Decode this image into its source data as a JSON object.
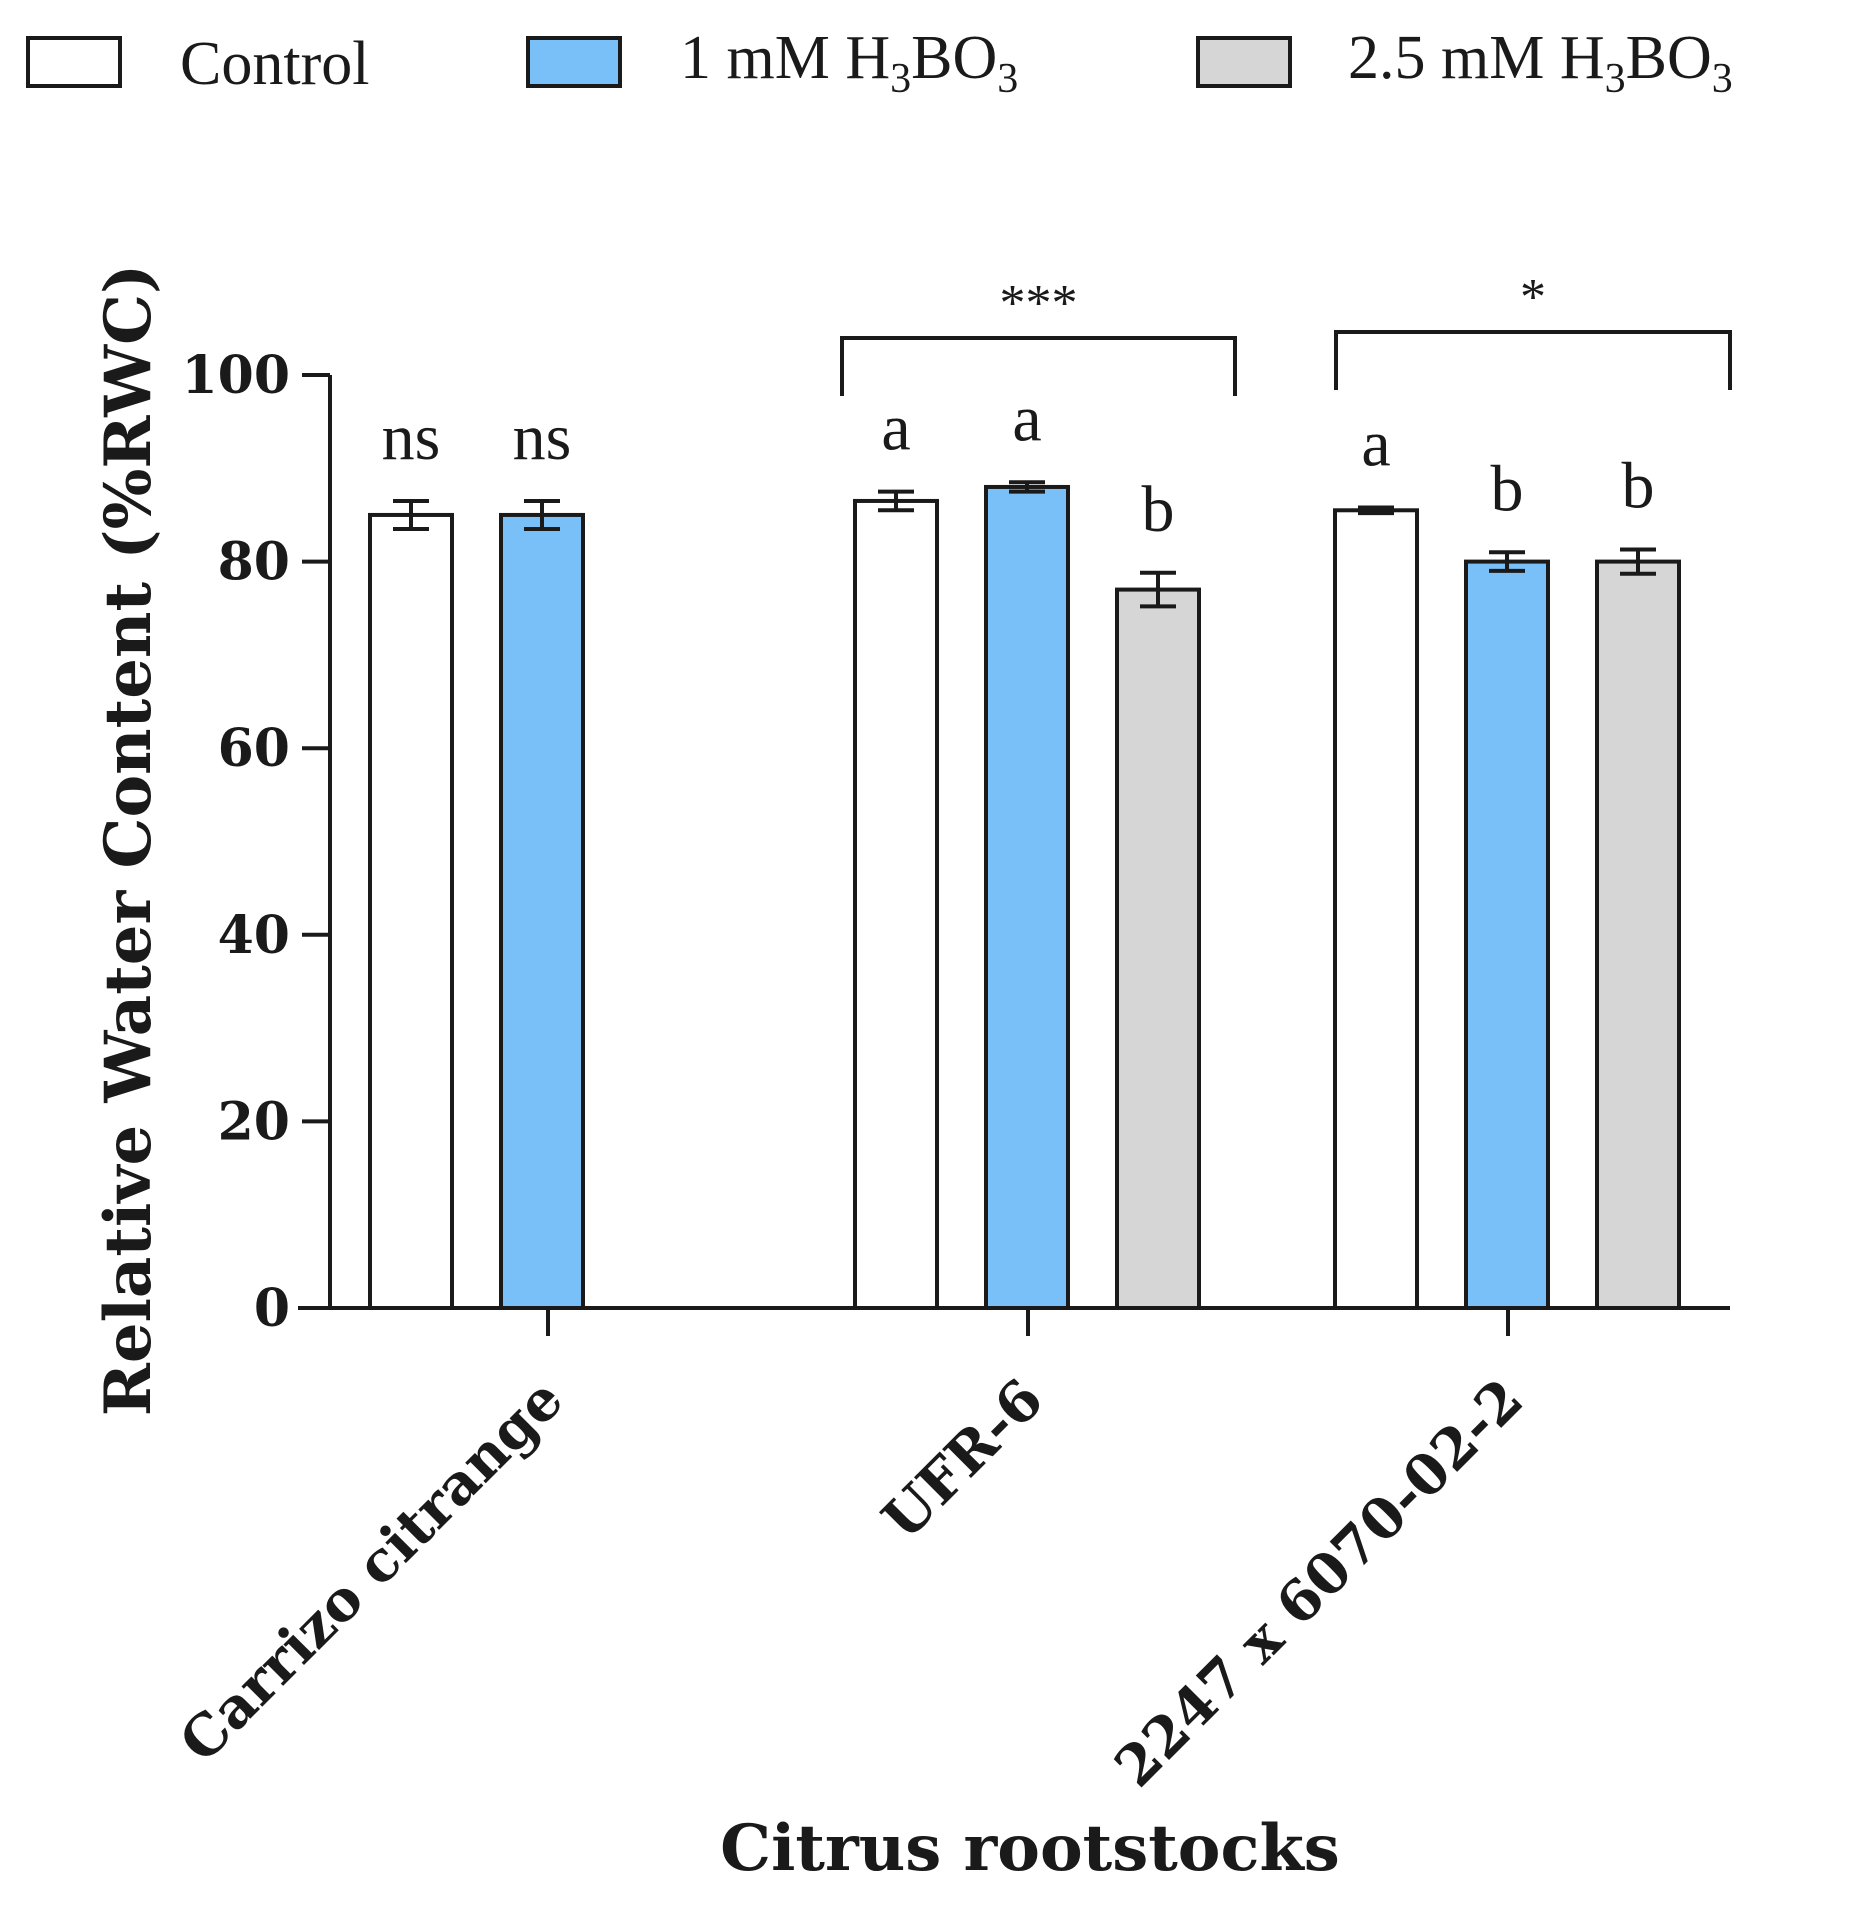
{
  "chart_data": {
    "type": "bar",
    "title": "",
    "xlabel": "Citrus rootstocks",
    "ylabel": "Relative Water Content (%RWC)",
    "ylim": [
      0,
      100
    ],
    "yticks": [
      0,
      20,
      40,
      60,
      80,
      100
    ],
    "grid": false,
    "legend_position": "top",
    "categories": [
      "Carrizo citrange",
      "UFR-6",
      "2247 x 6070-02-2"
    ],
    "series": [
      {
        "name": "Control",
        "color": "#ffffff",
        "legend_base": "Control",
        "legend_sub": "",
        "legend_tail": "",
        "values": [
          85.0,
          86.5,
          85.5
        ],
        "errors": [
          1.5,
          1.0,
          0.3
        ],
        "letters": [
          "ns",
          "a",
          "a"
        ]
      },
      {
        "name": "1 mM H3BO3",
        "color": "#79bff8",
        "legend_base": "1 mM H",
        "legend_sub": "3",
        "legend_tail": "BO",
        "legend_sub2": "3",
        "values": [
          85.0,
          88.0,
          80.0
        ],
        "errors": [
          1.5,
          0.5,
          1.0
        ],
        "letters": [
          "ns",
          "a",
          "b"
        ]
      },
      {
        "name": "2.5 mM H3BO3",
        "color": "#d6d6d6",
        "legend_base": "2.5 mM H",
        "legend_sub": "3",
        "legend_tail": "BO",
        "legend_sub2": "3",
        "values": [
          null,
          77.0,
          80.0
        ],
        "errors": [
          null,
          1.8,
          1.3
        ],
        "letters": [
          null,
          "b",
          "b"
        ]
      }
    ],
    "significance": [
      {
        "category": "UFR-6",
        "label": "***"
      },
      {
        "category": "2247 x 6070-02-2",
        "label": "*"
      }
    ]
  }
}
